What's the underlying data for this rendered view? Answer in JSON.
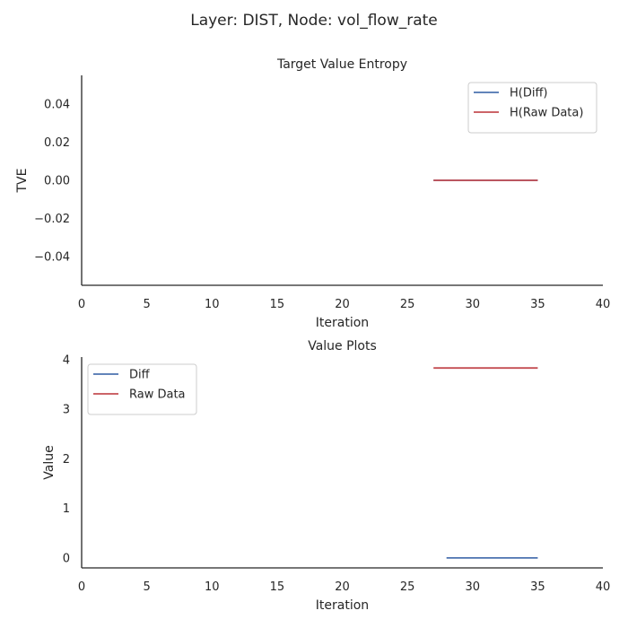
{
  "suptitle": "Layer: DIST, Node: vol_flow_rate",
  "chart_data": [
    {
      "type": "line",
      "title": "Target Value Entropy",
      "xlabel": "Iteration",
      "ylabel": "TVE",
      "xlim": [
        0,
        40
      ],
      "ylim": [
        -0.055,
        0.055
      ],
      "xticks": [
        0,
        5,
        10,
        15,
        20,
        25,
        30,
        35,
        40
      ],
      "yticks": [
        -0.04,
        -0.02,
        0.0,
        0.02,
        0.04
      ],
      "xtick_labels": [
        "0",
        "5",
        "10",
        "15",
        "20",
        "25",
        "30",
        "35",
        "40"
      ],
      "ytick_labels": [
        "−0.04",
        "−0.02",
        "0.00",
        "0.02",
        "0.04"
      ],
      "grid": false,
      "legend_position": "top-right",
      "series": [
        {
          "name": "H(Diff)",
          "color": "#4c72b0",
          "x": [
            27,
            35
          ],
          "y": [
            0.0,
            0.0
          ]
        },
        {
          "name": "H(Raw Data)",
          "color": "#c44e52",
          "x": [
            27,
            35
          ],
          "y": [
            0.0,
            0.0
          ]
        }
      ]
    },
    {
      "type": "line",
      "title": "Value Plots",
      "xlabel": "Iteration",
      "ylabel": "Value",
      "xlim": [
        0,
        40
      ],
      "ylim": [
        -0.2,
        4.05
      ],
      "xticks": [
        0,
        5,
        10,
        15,
        20,
        25,
        30,
        35,
        40
      ],
      "yticks": [
        0,
        1,
        2,
        3,
        4
      ],
      "xtick_labels": [
        "0",
        "5",
        "10",
        "15",
        "20",
        "25",
        "30",
        "35",
        "40"
      ],
      "ytick_labels": [
        "0",
        "1",
        "2",
        "3",
        "4"
      ],
      "grid": false,
      "legend_position": "top-left",
      "series": [
        {
          "name": "Diff",
          "color": "#4c72b0",
          "x": [
            28,
            35
          ],
          "y": [
            0.0,
            0.0
          ]
        },
        {
          "name": "Raw Data",
          "color": "#c44e52",
          "x": [
            27,
            35
          ],
          "y": [
            3.83,
            3.83
          ]
        }
      ]
    }
  ]
}
